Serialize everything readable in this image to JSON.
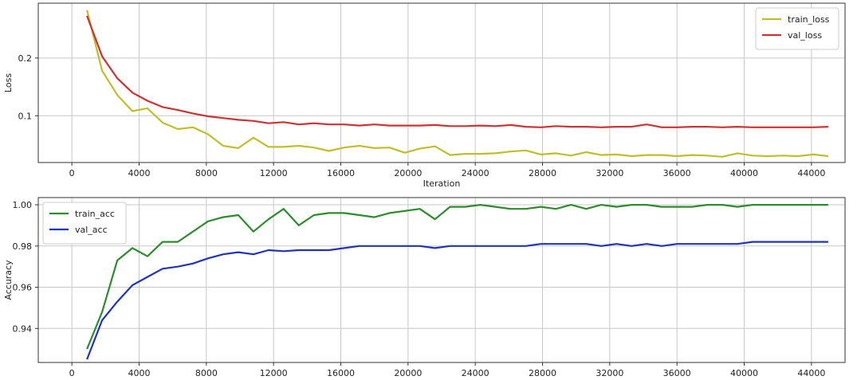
{
  "chart_data": [
    {
      "type": "line",
      "title": "",
      "xlabel": "Iteration",
      "ylabel": "Loss",
      "xlim": [
        -2000,
        46000
      ],
      "ylim": [
        0.019,
        0.295
      ],
      "xticks": [
        0,
        4000,
        8000,
        12000,
        16000,
        20000,
        24000,
        28000,
        32000,
        36000,
        40000,
        44000
      ],
      "yticks": [
        0.1,
        0.2
      ],
      "grid": true,
      "legend_position": "top-right",
      "x": [
        900,
        1800,
        2700,
        3600,
        4500,
        5400,
        6300,
        7200,
        8100,
        9000,
        9900,
        10800,
        11700,
        12600,
        13500,
        14400,
        15300,
        16200,
        17100,
        18000,
        18900,
        19800,
        20700,
        21600,
        22500,
        23400,
        24300,
        25200,
        26100,
        27000,
        27900,
        28800,
        29700,
        30600,
        31500,
        32400,
        33300,
        34200,
        35100,
        36000,
        36900,
        37800,
        38700,
        39600,
        40500,
        41400,
        42300,
        43200,
        44100,
        45000
      ],
      "series": [
        {
          "name": "train_loss",
          "color": "#bfbf2a",
          "values": [
            0.283,
            0.178,
            0.136,
            0.108,
            0.113,
            0.088,
            0.077,
            0.08,
            0.068,
            0.048,
            0.044,
            0.062,
            0.046,
            0.046,
            0.048,
            0.045,
            0.039,
            0.045,
            0.048,
            0.044,
            0.045,
            0.036,
            0.043,
            0.047,
            0.032,
            0.034,
            0.034,
            0.035,
            0.038,
            0.04,
            0.033,
            0.035,
            0.031,
            0.037,
            0.032,
            0.033,
            0.03,
            0.032,
            0.032,
            0.03,
            0.032,
            0.031,
            0.029,
            0.035,
            0.031,
            0.03,
            0.031,
            0.03,
            0.033,
            0.03
          ]
        },
        {
          "name": "val_loss",
          "color": "#cc3333",
          "values": [
            0.273,
            0.203,
            0.165,
            0.14,
            0.126,
            0.115,
            0.11,
            0.104,
            0.099,
            0.096,
            0.093,
            0.091,
            0.087,
            0.089,
            0.085,
            0.087,
            0.085,
            0.085,
            0.083,
            0.085,
            0.083,
            0.083,
            0.083,
            0.084,
            0.082,
            0.082,
            0.083,
            0.082,
            0.084,
            0.081,
            0.08,
            0.082,
            0.081,
            0.081,
            0.08,
            0.081,
            0.081,
            0.085,
            0.08,
            0.08,
            0.081,
            0.081,
            0.08,
            0.081,
            0.08,
            0.08,
            0.08,
            0.08,
            0.08,
            0.081
          ]
        }
      ]
    },
    {
      "type": "line",
      "title": "",
      "xlabel": "",
      "ylabel": "Accuracy",
      "xlim": [
        -2000,
        46000
      ],
      "ylim": [
        0.9235,
        1.0035
      ],
      "xticks": [
        0,
        4000,
        8000,
        12000,
        16000,
        20000,
        24000,
        28000,
        32000,
        36000,
        40000,
        44000
      ],
      "yticks": [
        0.94,
        0.96,
        0.98,
        1.0
      ],
      "ytick_labels": [
        "0.94",
        "0.96",
        "0.98",
        "1.00"
      ],
      "grid": true,
      "legend_position": "top-left",
      "x": [
        900,
        1800,
        2700,
        3600,
        4500,
        5400,
        6300,
        7200,
        8100,
        9000,
        9900,
        10800,
        11700,
        12600,
        13500,
        14400,
        15300,
        16200,
        17100,
        18000,
        18900,
        19800,
        20700,
        21600,
        22500,
        23400,
        24300,
        25200,
        26100,
        27000,
        27900,
        28800,
        29700,
        30600,
        31500,
        32400,
        33300,
        34200,
        35100,
        36000,
        36900,
        37800,
        38700,
        39600,
        40500,
        41400,
        42300,
        43200,
        44100,
        45000
      ],
      "series": [
        {
          "name": "train_acc",
          "color": "#2e8b2e",
          "values": [
            0.93,
            0.948,
            0.973,
            0.979,
            0.975,
            0.982,
            0.982,
            0.987,
            0.992,
            0.994,
            0.995,
            0.987,
            0.993,
            0.998,
            0.99,
            0.995,
            0.996,
            0.996,
            0.995,
            0.994,
            0.996,
            0.997,
            0.998,
            0.993,
            0.999,
            0.999,
            1.0,
            0.999,
            0.998,
            0.998,
            0.999,
            0.998,
            1.0,
            0.998,
            1.0,
            0.999,
            1.0,
            1.0,
            0.999,
            0.999,
            0.999,
            1.0,
            1.0,
            0.999,
            1.0,
            1.0,
            1.0,
            1.0,
            1.0,
            1.0
          ]
        },
        {
          "name": "val_acc",
          "color": "#2233bb",
          "values": [
            0.925,
            0.944,
            0.953,
            0.961,
            0.965,
            0.969,
            0.97,
            0.9715,
            0.974,
            0.976,
            0.977,
            0.976,
            0.978,
            0.9775,
            0.978,
            0.978,
            0.978,
            0.979,
            0.98,
            0.98,
            0.98,
            0.98,
            0.98,
            0.979,
            0.98,
            0.98,
            0.98,
            0.98,
            0.98,
            0.98,
            0.981,
            0.981,
            0.981,
            0.981,
            0.98,
            0.981,
            0.98,
            0.981,
            0.98,
            0.981,
            0.981,
            0.981,
            0.981,
            0.981,
            0.982,
            0.982,
            0.982,
            0.982,
            0.982,
            0.982
          ]
        }
      ]
    }
  ]
}
